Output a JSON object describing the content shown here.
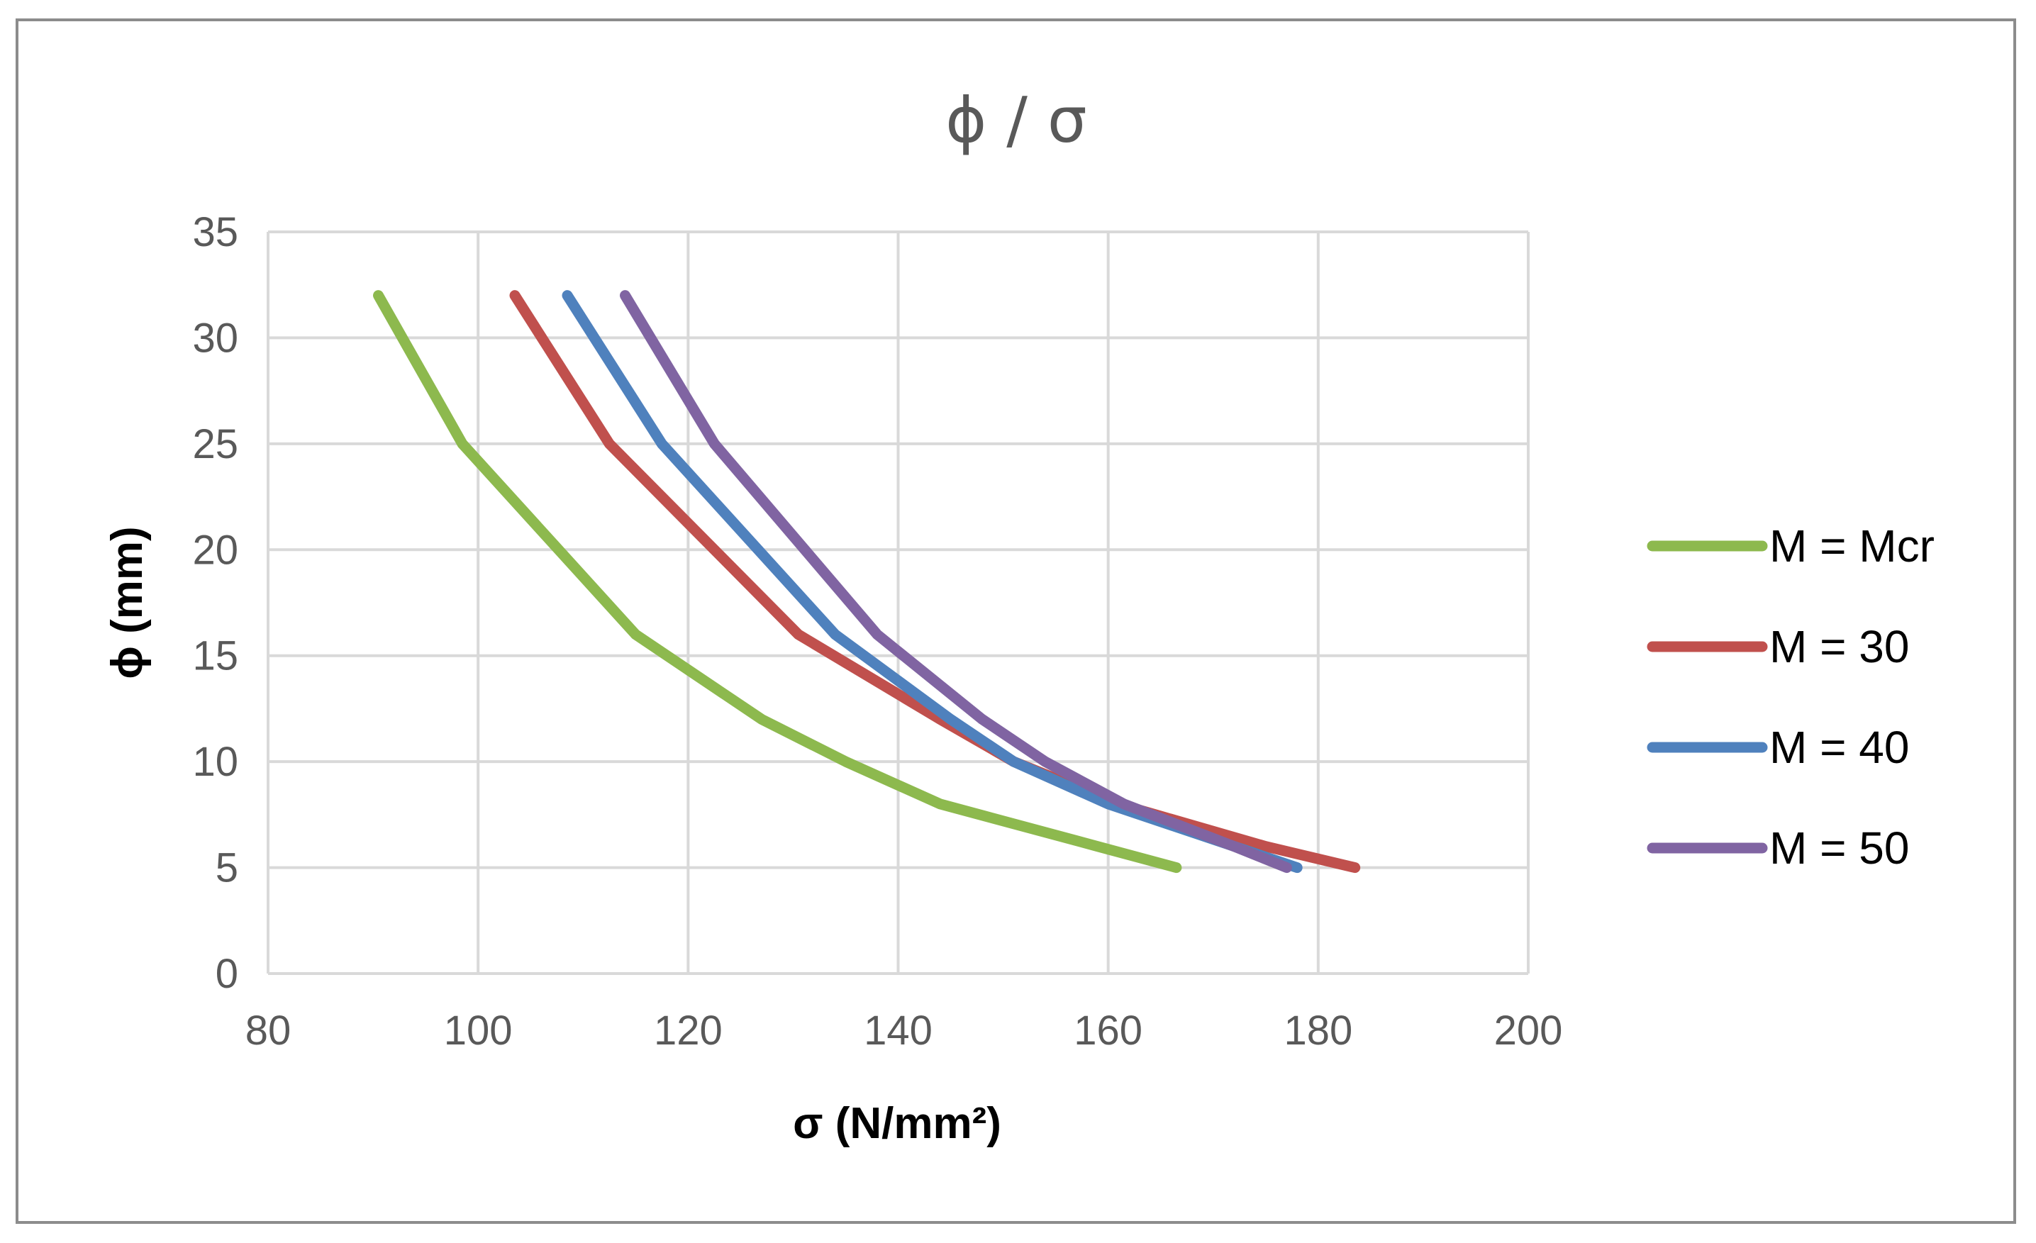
{
  "chart_data": {
    "type": "line",
    "title": "ϕ / σ",
    "xlabel": "σ (N/mm²)",
    "ylabel": "ϕ (mm)",
    "xlim": [
      80,
      200
    ],
    "ylim": [
      0,
      35
    ],
    "xticks": [
      80,
      100,
      120,
      140,
      160,
      180,
      200
    ],
    "yticks": [
      0,
      5,
      10,
      15,
      20,
      25,
      30,
      35
    ],
    "grid": true,
    "legend_position": "right",
    "series": [
      {
        "name": "M = Mcr",
        "color": "#8DB94E",
        "points": [
          [
            90.5,
            32
          ],
          [
            98.5,
            25
          ],
          [
            115,
            16
          ],
          [
            127,
            12
          ],
          [
            135,
            10
          ],
          [
            144,
            8
          ],
          [
            159,
            6
          ],
          [
            166.5,
            5
          ]
        ]
      },
      {
        "name": "M = 30",
        "color": "#C0504D",
        "points": [
          [
            103.5,
            32
          ],
          [
            112.5,
            25
          ],
          [
            130.5,
            16
          ],
          [
            144,
            12
          ],
          [
            151,
            10
          ],
          [
            161,
            8
          ],
          [
            175,
            6
          ],
          [
            183.5,
            5
          ]
        ]
      },
      {
        "name": "M = 40",
        "color": "#4F81BD",
        "points": [
          [
            108.5,
            32
          ],
          [
            117.5,
            25
          ],
          [
            134,
            16
          ],
          [
            145,
            12
          ],
          [
            151,
            10
          ],
          [
            160,
            8
          ],
          [
            172,
            6
          ],
          [
            178,
            5
          ]
        ]
      },
      {
        "name": "M = 50",
        "color": "#8064A2",
        "points": [
          [
            114,
            32
          ],
          [
            122.5,
            25
          ],
          [
            138,
            16
          ],
          [
            148,
            12
          ],
          [
            154,
            10
          ],
          [
            161.5,
            8
          ],
          [
            172,
            6
          ],
          [
            177,
            5
          ]
        ]
      }
    ]
  }
}
